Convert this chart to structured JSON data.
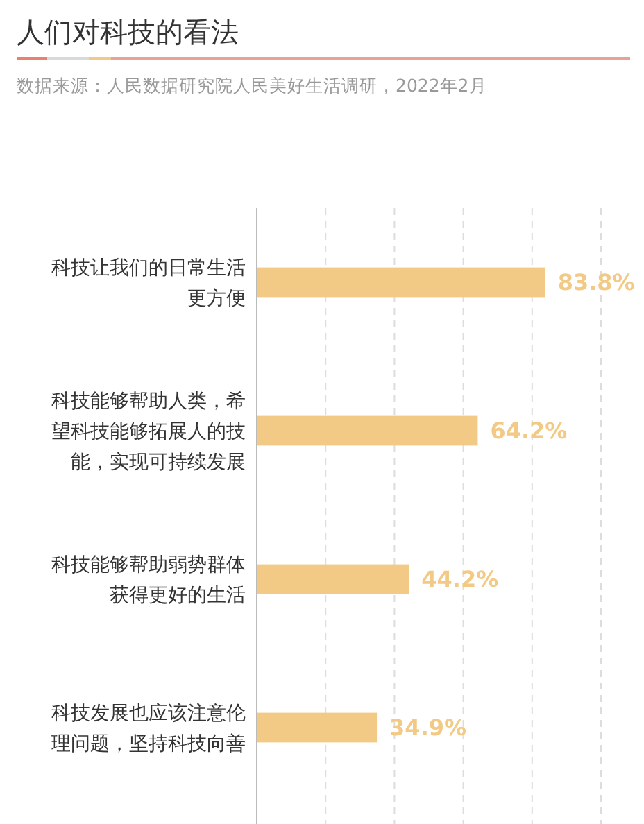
{
  "chart_data": {
    "type": "bar",
    "orientation": "horizontal",
    "title": "人们对科技的看法",
    "subtitle": "数据来源：人民数据研究院人民美好生活调研，2022年2月",
    "categories": [
      "科技让我们的日常生活更方便",
      "科技能够帮助人类，希望科技能够拓展人的技能，实现可持续发展",
      "科技能够帮助弱势群体获得更好的生活",
      "科技发展也应该注意伦理问题，坚持科技向善"
    ],
    "values": [
      83.8,
      64.2,
      44.2,
      34.9
    ],
    "color": "#f2ca85",
    "value_labels": [
      "83.8%",
      "64.2%",
      "44.2%",
      "34.9%"
    ],
    "xticks": [
      {
        "value": 20,
        "label": null
      },
      {
        "value": 40,
        "label": null
      },
      {
        "value": 60,
        "label": null
      },
      {
        "value": 80,
        "label": null
      },
      {
        "value": 100,
        "label": null
      }
    ],
    "grid": "x",
    "tick_labels": "y"
  }
}
